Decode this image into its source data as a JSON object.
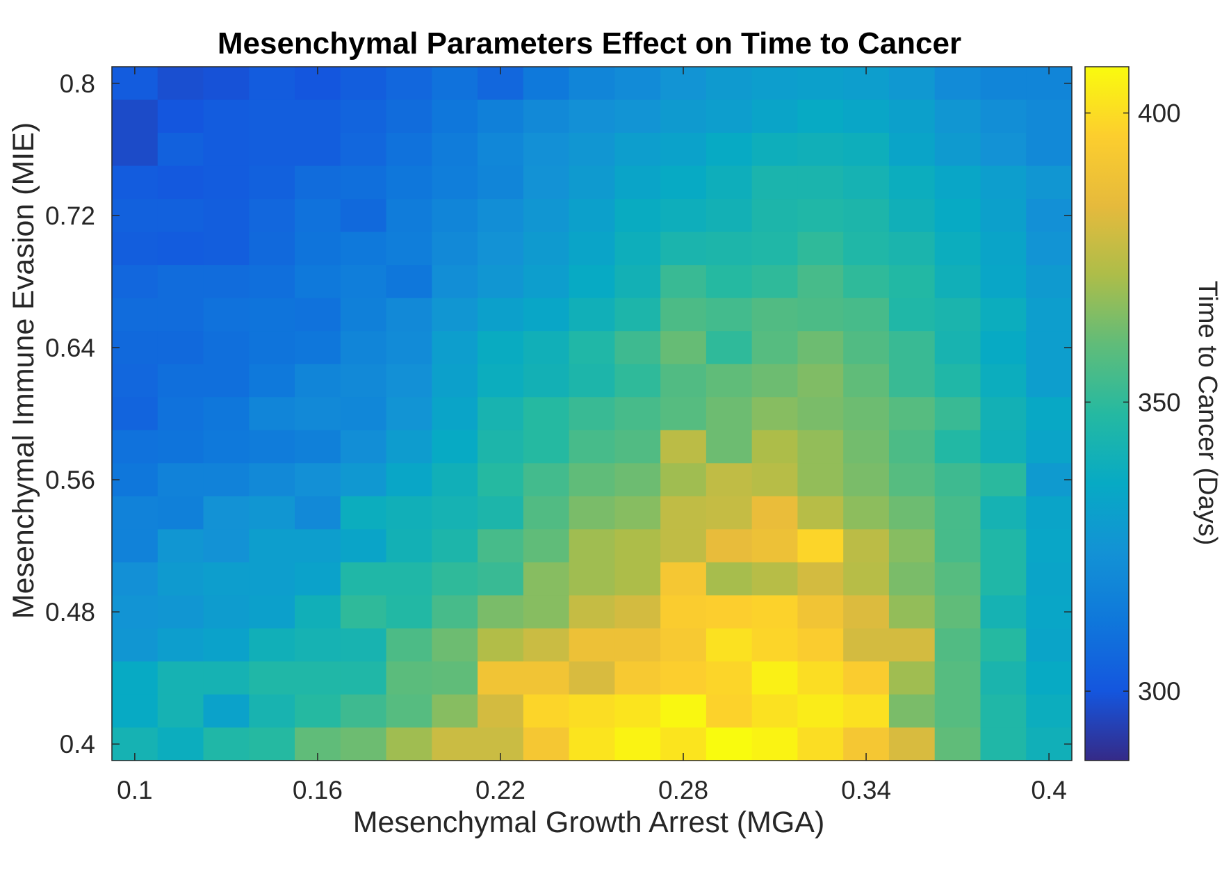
{
  "chart_data": {
    "type": "heatmap",
    "title": "Mesenchymal Parameters Effect on Time to Cancer",
    "xlabel": "Mesenchymal Growth Arrest (MGA)",
    "ylabel": "Mesenchymal Immune Evasion (MIE)",
    "colorbar_label": "Time to Cancer (Days)",
    "colormap": "parula",
    "colorbar_range": [
      288,
      408
    ],
    "colorbar_ticks": [
      "300",
      "350",
      "400"
    ],
    "colorbar_tick_values": [
      300,
      350,
      400
    ],
    "xlim": [
      0.1,
      0.4
    ],
    "ylim": [
      0.4,
      0.8
    ],
    "x_ticks": [
      "0.1",
      "0.16",
      "0.22",
      "0.28",
      "0.34",
      "0.4"
    ],
    "x_tick_values": [
      0.1,
      0.16,
      0.22,
      0.28,
      0.34,
      0.4
    ],
    "y_ticks": [
      "0.8",
      "0.72",
      "0.64",
      "0.56",
      "0.48",
      "0.4"
    ],
    "y_tick_values": [
      0.8,
      0.72,
      0.64,
      0.56,
      0.48,
      0.4
    ],
    "x": [
      0.1,
      0.115,
      0.13,
      0.145,
      0.16,
      0.175,
      0.19,
      0.205,
      0.22,
      0.235,
      0.25,
      0.265,
      0.28,
      0.295,
      0.31,
      0.325,
      0.34,
      0.355,
      0.37,
      0.385,
      0.4
    ],
    "y": [
      0.8,
      0.78,
      0.76,
      0.74,
      0.72,
      0.7,
      0.68,
      0.66,
      0.64,
      0.62,
      0.6,
      0.58,
      0.56,
      0.54,
      0.52,
      0.5,
      0.48,
      0.46,
      0.44,
      0.42,
      0.4
    ],
    "z": [
      [
        302,
        298,
        299,
        302,
        300,
        303,
        306,
        310,
        306,
        313,
        318,
        321,
        325,
        328,
        330,
        331,
        330,
        327,
        321,
        318,
        318
      ],
      [
        297,
        300,
        302,
        303,
        303,
        305,
        308,
        312,
        316,
        320,
        323,
        325,
        328,
        330,
        333,
        336,
        334,
        331,
        326,
        322,
        320
      ],
      [
        297,
        304,
        302,
        303,
        303,
        306,
        310,
        314,
        319,
        323,
        326,
        330,
        332,
        336,
        339,
        340,
        339,
        333,
        328,
        324,
        320
      ],
      [
        302,
        301,
        302,
        304,
        308,
        309,
        312,
        315,
        318,
        324,
        328,
        333,
        336,
        339,
        344,
        344,
        342,
        338,
        334,
        330,
        326
      ],
      [
        304,
        304,
        303,
        306,
        310,
        307,
        314,
        318,
        322,
        326,
        331,
        337,
        339,
        341,
        345,
        346,
        345,
        340,
        336,
        331,
        323
      ],
      [
        303,
        302,
        303,
        307,
        311,
        313,
        315,
        320,
        324,
        328,
        333,
        339,
        344,
        345,
        346,
        350,
        346,
        344,
        338,
        333,
        325
      ],
      [
        306,
        308,
        308,
        309,
        313,
        315,
        312,
        322,
        326,
        330,
        336,
        341,
        352,
        348,
        350,
        355,
        350,
        347,
        340,
        334,
        328
      ],
      [
        308,
        308,
        310,
        311,
        310,
        316,
        320,
        326,
        331,
        334,
        340,
        345,
        356,
        354,
        357,
        356,
        355,
        346,
        344,
        338,
        330
      ],
      [
        307,
        307,
        309,
        311,
        312,
        318,
        321,
        330,
        337,
        340,
        346,
        353,
        361,
        350,
        358,
        362,
        357,
        352,
        343,
        336,
        330
      ],
      [
        306,
        309,
        309,
        313,
        318,
        320,
        323,
        331,
        338,
        341,
        345,
        350,
        357,
        360,
        362,
        365,
        360,
        352,
        346,
        338,
        330
      ],
      [
        305,
        310,
        312,
        318,
        320,
        319,
        325,
        333,
        343,
        348,
        352,
        355,
        358,
        362,
        366,
        364,
        362,
        358,
        352,
        341,
        335
      ],
      [
        310,
        311,
        313,
        314,
        316,
        322,
        329,
        336,
        345,
        348,
        355,
        357,
        375,
        362,
        372,
        368,
        363,
        356,
        347,
        340,
        333
      ],
      [
        312,
        317,
        317,
        320,
        323,
        327,
        334,
        340,
        348,
        354,
        360,
        362,
        370,
        376,
        374,
        368,
        364,
        358,
        353,
        349,
        328
      ],
      [
        317,
        316,
        324,
        326,
        320,
        338,
        340,
        342,
        345,
        357,
        364,
        366,
        376,
        377,
        386,
        374,
        367,
        362,
        355,
        342,
        333
      ],
      [
        317,
        326,
        324,
        330,
        330,
        333,
        341,
        345,
        355,
        360,
        370,
        372,
        376,
        385,
        388,
        398,
        375,
        366,
        355,
        346,
        334
      ],
      [
        323,
        328,
        330,
        330,
        332,
        346,
        346,
        350,
        352,
        366,
        370,
        372,
        392,
        371,
        374,
        380,
        374,
        364,
        358,
        346,
        333
      ],
      [
        325,
        326,
        329,
        331,
        340,
        350,
        347,
        355,
        364,
        366,
        377,
        380,
        395,
        396,
        397,
        390,
        382,
        368,
        360,
        342,
        334
      ],
      [
        326,
        330,
        332,
        340,
        342,
        343,
        356,
        362,
        373,
        378,
        388,
        388,
        393,
        401,
        398,
        395,
        380,
        380,
        357,
        348,
        333
      ],
      [
        336,
        342,
        342,
        346,
        346,
        346,
        359,
        360,
        390,
        390,
        381,
        393,
        396,
        398,
        405,
        400,
        395,
        370,
        358,
        344,
        336
      ],
      [
        336,
        342,
        332,
        343,
        348,
        353,
        358,
        366,
        380,
        398,
        400,
        402,
        407,
        397,
        401,
        404,
        401,
        364,
        358,
        346,
        338
      ],
      [
        342,
        338,
        346,
        348,
        360,
        362,
        370,
        378,
        378,
        392,
        402,
        406,
        402,
        410,
        406,
        400,
        392,
        381,
        360,
        346,
        340
      ]
    ]
  }
}
